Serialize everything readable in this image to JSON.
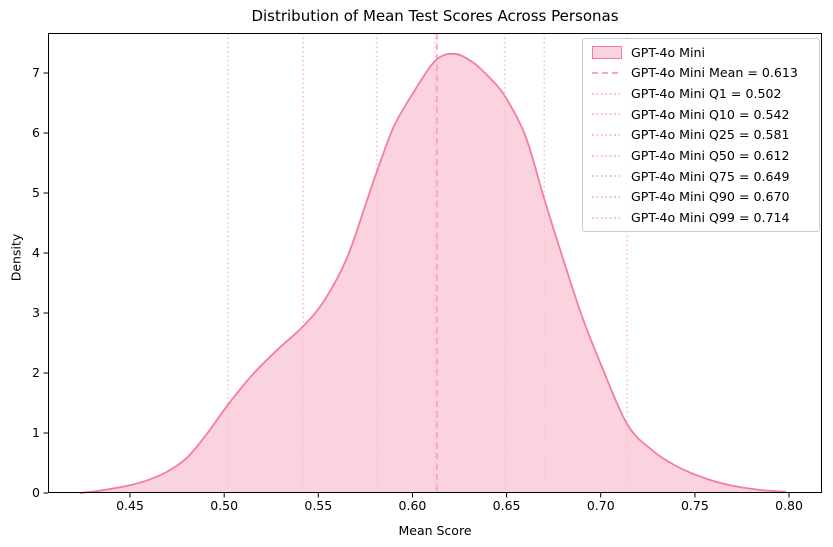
{
  "figure": {
    "title": "Distribution of Mean Test Scores Across Personas",
    "xlabel": "Mean Score",
    "ylabel": "Density"
  },
  "chart_data": {
    "type": "area",
    "subtype": "kde-density",
    "title": "Distribution of Mean Test Scores Across Personas",
    "xlabel": "Mean Score",
    "ylabel": "Density",
    "xlim": [
      0.40645,
      0.8175
    ],
    "ylim": [
      0,
      7.6667
    ],
    "grid": false,
    "legend_position": "upper right",
    "xticks": [
      0.45,
      0.5,
      0.55,
      0.6,
      0.65,
      0.7,
      0.75,
      0.8
    ],
    "xtick_labels": [
      "0.45",
      "0.50",
      "0.55",
      "0.60",
      "0.65",
      "0.70",
      "0.75",
      "0.80"
    ],
    "yticks": [
      0,
      1,
      2,
      3,
      4,
      5,
      6,
      7
    ],
    "ytick_labels": [
      "0",
      "1",
      "2",
      "3",
      "4",
      "5",
      "6",
      "7"
    ],
    "series": [
      {
        "name": "GPT-4o Mini",
        "x": [
          0.4235,
          0.432,
          0.44,
          0.45,
          0.46,
          0.47,
          0.48,
          0.49,
          0.502,
          0.515,
          0.528,
          0.542,
          0.553,
          0.565,
          0.575,
          0.581,
          0.59,
          0.6,
          0.612,
          0.622,
          0.632,
          0.641,
          0.649,
          0.66,
          0.67,
          0.68,
          0.69,
          0.7,
          0.714,
          0.727,
          0.74,
          0.755,
          0.77,
          0.785,
          0.7985
        ],
        "y": [
          0.0,
          0.03,
          0.07,
          0.13,
          0.22,
          0.36,
          0.58,
          0.95,
          1.47,
          1.97,
          2.38,
          2.78,
          3.2,
          3.9,
          4.8,
          5.35,
          6.1,
          6.65,
          7.2,
          7.32,
          7.18,
          6.92,
          6.62,
          5.95,
          4.9,
          3.9,
          2.95,
          2.15,
          1.15,
          0.72,
          0.45,
          0.25,
          0.12,
          0.05,
          0.02
        ],
        "peak": {
          "x": 0.622,
          "y": 7.32
        }
      }
    ],
    "vlines": [
      {
        "x": 0.613,
        "style": "dashed",
        "label": "GPT-4o Mini Mean = 0.613"
      },
      {
        "x": 0.502,
        "style": "dotted",
        "label": "GPT-4o Mini Q1 = 0.502"
      },
      {
        "x": 0.542,
        "style": "dotted",
        "label": "GPT-4o Mini Q10 = 0.542"
      },
      {
        "x": 0.581,
        "style": "dotted",
        "label": "GPT-4o Mini Q25 = 0.581"
      },
      {
        "x": 0.612,
        "style": "dotted",
        "label": "GPT-4o Mini Q50 = 0.612"
      },
      {
        "x": 0.649,
        "style": "dotted",
        "label": "GPT-4o Mini Q75 = 0.649"
      },
      {
        "x": 0.67,
        "style": "dotted",
        "label": "GPT-4o Mini Q90 = 0.670"
      },
      {
        "x": 0.714,
        "style": "dotted",
        "label": "GPT-4o Mini Q99 = 0.714"
      }
    ],
    "colors": {
      "curve_stroke": "#f37e9d",
      "curve_fill": "#fbd3de",
      "mean_line": "#f8a8be",
      "quantile_line": "#f9c2d1",
      "axis": "#000000",
      "legend_border": "#cccccc",
      "background": "#ffffff"
    }
  },
  "legend": {
    "series_label": "GPT-4o Mini"
  }
}
